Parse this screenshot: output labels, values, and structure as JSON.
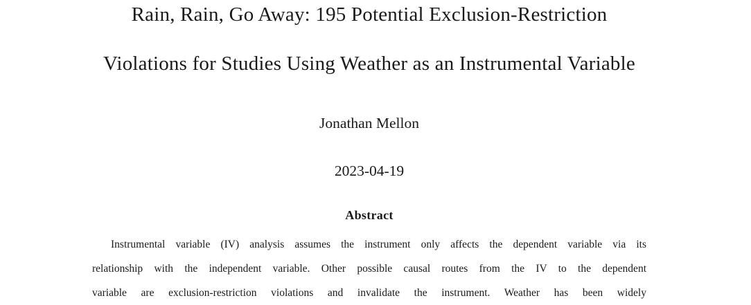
{
  "paper": {
    "title_line1": "Rain, Rain, Go Away: 195 Potential Exclusion-Restriction",
    "title_line2": "Violations for Studies Using Weather as an Instrumental Variable",
    "author": "Jonathan Mellon",
    "date": "2023-04-19",
    "abstract": {
      "heading": "Abstract",
      "lines": [
        "Instrumental variable (IV) analysis assumes the instrument only affects the dependent variable via its",
        "relationship with the independent variable. Other possible causal routes from the IV to the dependent",
        "variable are exclusion-restriction violations and invalidate the instrument. Weather has been widely"
      ]
    },
    "colors": {
      "background": "#ffffff",
      "text": "#1a1a1a"
    }
  }
}
